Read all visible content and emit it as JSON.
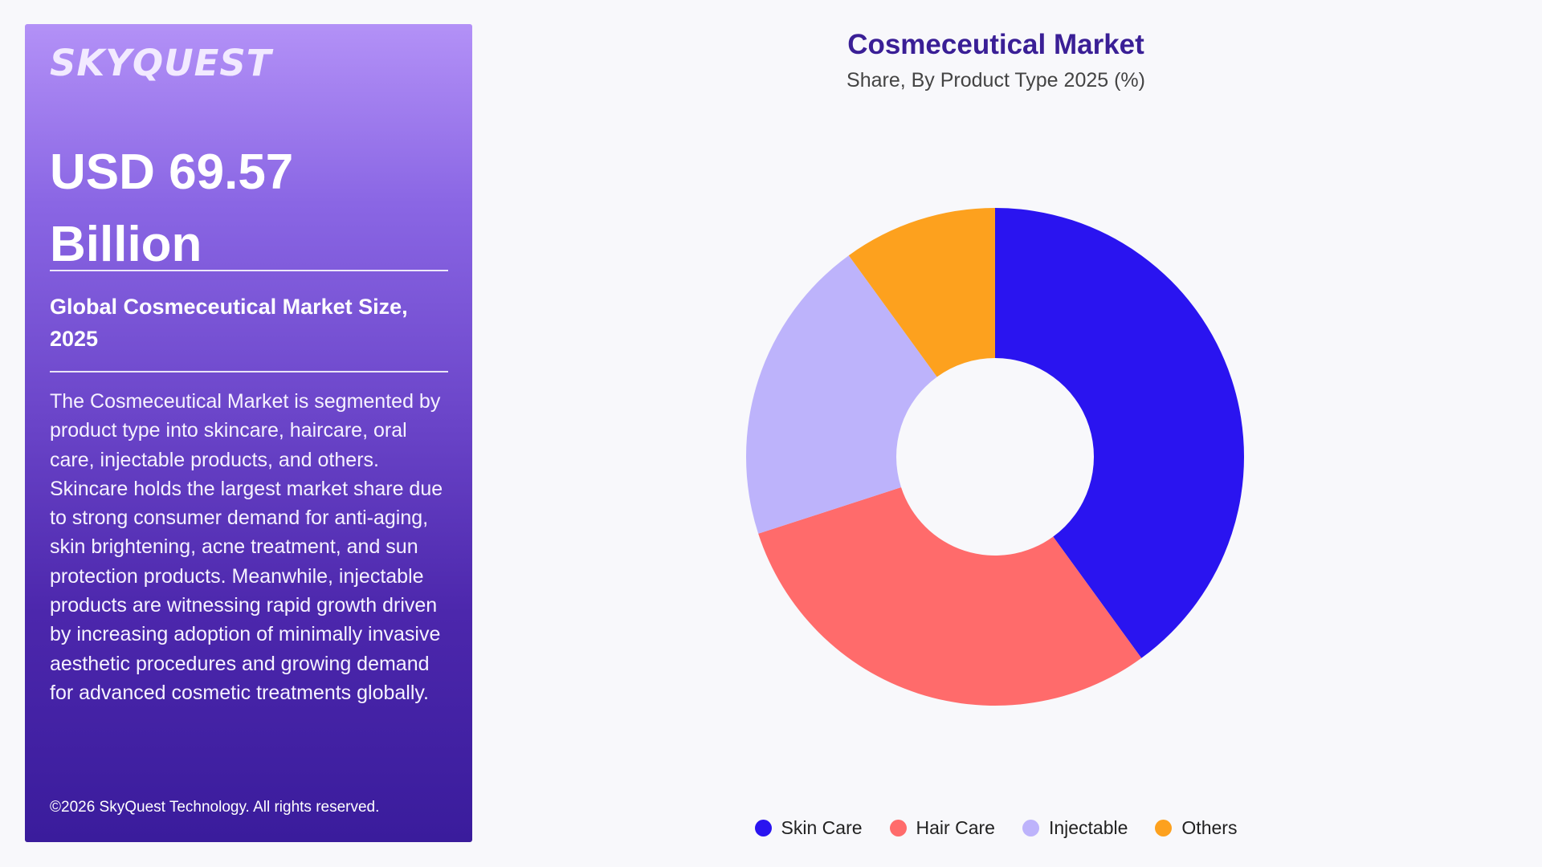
{
  "panel": {
    "logo": "SKYQUEST",
    "value_line1": "USD 69.57",
    "value_line2": "Billion",
    "subtitle": "Global Cosmeceutical Market Size, 2025",
    "description": "The Cosmeceutical Market is segmented by product type into skincare, haircare, oral care, injectable products, and others. Skincare holds the largest market share due to strong consumer demand for anti-aging, skin brightening, acne treatment, and sun protection products. Meanwhile, injectable products are witnessing rapid growth driven by increasing adoption of minimally invasive aesthetic procedures and growing demand for advanced cosmetic treatments globally.",
    "copyright": "©2026 SkyQuest Technology. All rights reserved."
  },
  "chart_data": {
    "type": "pie",
    "variant": "donut",
    "title": "Cosmeceutical Market",
    "subtitle": "Share, By Product Type 2025 (%)",
    "categories": [
      "Skin Care",
      "Hair Care",
      "Injectable",
      "Others"
    ],
    "values": [
      40,
      30,
      20,
      10
    ],
    "colors": [
      "#2a14f0",
      "#ff6b6b",
      "#bdb3fb",
      "#fda11e"
    ],
    "legend_position": "bottom"
  }
}
